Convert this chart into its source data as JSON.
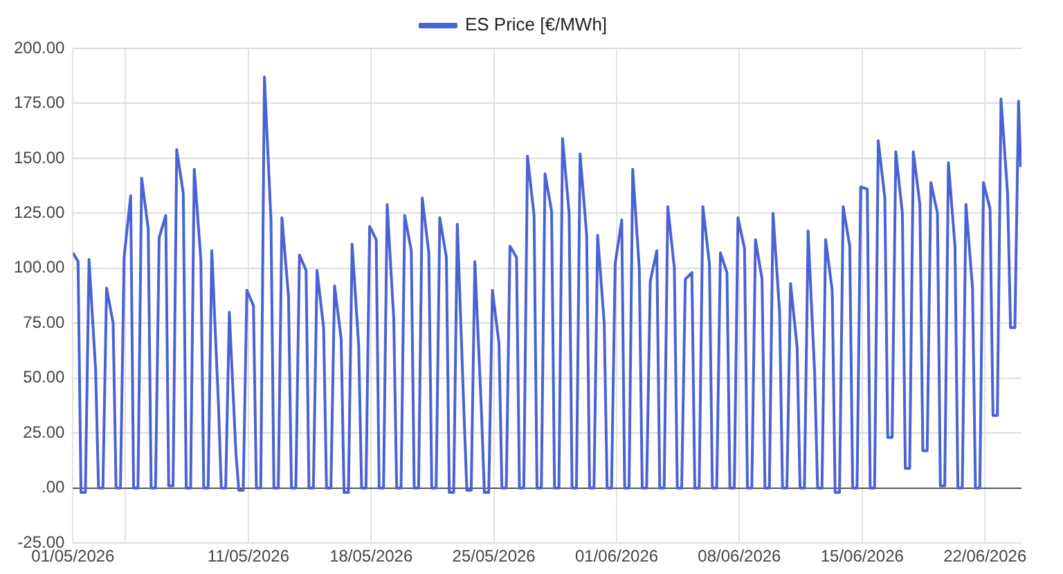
{
  "chart_data": {
    "type": "line",
    "legend": "top",
    "grid": true,
    "xlim": [
      "2026-05-01T00:00",
      "2026-06-24T02:00"
    ],
    "xticks": [
      {
        "value": "2026-05-01",
        "label": "01/05/2026"
      },
      {
        "value": "2026-05-04",
        "label": null
      },
      {
        "value": "2026-05-11",
        "label": "11/05/2026"
      },
      {
        "value": "2026-05-18",
        "label": "18/05/2026"
      },
      {
        "value": "2026-05-25",
        "label": "25/05/2026"
      },
      {
        "value": "2026-06-01",
        "label": "01/06/2026"
      },
      {
        "value": "2026-06-08",
        "label": "08/06/2026"
      },
      {
        "value": "2026-06-15",
        "label": "15/06/2026"
      },
      {
        "value": "2026-06-22",
        "label": "22/06/2026"
      }
    ],
    "ylim": [
      -25,
      200
    ],
    "yticks": [
      {
        "value": -25,
        "label": "-25.00"
      },
      {
        "value": 0,
        "label": ".00"
      },
      {
        "value": 25,
        "label": "25.00"
      },
      {
        "value": 50,
        "label": "50.00"
      },
      {
        "value": 75,
        "label": "75.00"
      },
      {
        "value": 100,
        "label": "100.00"
      },
      {
        "value": 125,
        "label": "125.00"
      },
      {
        "value": 150,
        "label": "150.00"
      },
      {
        "value": 175,
        "label": "175.00"
      },
      {
        "value": 200,
        "label": "200.00"
      }
    ],
    "series": [
      {
        "name": "ES Price [€/MWh]",
        "color": "#4a63d3",
        "x": [
          "2026-05-01T00:00",
          "2026-05-01T07:00",
          "2026-05-01T11:00",
          "2026-05-01T17:00",
          "2026-05-01T22:00",
          "2026-05-02T07:00",
          "2026-05-02T11:00",
          "2026-05-02T17:00",
          "2026-05-02T22:00",
          "2026-05-03T07:00",
          "2026-05-03T11:00",
          "2026-05-03T17:00",
          "2026-05-03T22:00",
          "2026-05-04T07:00",
          "2026-05-04T11:00",
          "2026-05-04T17:00",
          "2026-05-04T22:00",
          "2026-05-05T07:00",
          "2026-05-05T11:00",
          "2026-05-05T17:00",
          "2026-05-05T22:00",
          "2026-05-06T07:00",
          "2026-05-06T11:00",
          "2026-05-06T17:00",
          "2026-05-06T22:00",
          "2026-05-07T07:00",
          "2026-05-07T11:00",
          "2026-05-07T17:00",
          "2026-05-07T22:00",
          "2026-05-08T07:00",
          "2026-05-08T11:00",
          "2026-05-08T17:00",
          "2026-05-08T22:00",
          "2026-05-09T07:00",
          "2026-05-09T11:00",
          "2026-05-09T17:00",
          "2026-05-09T22:00",
          "2026-05-10T07:00",
          "2026-05-10T11:00",
          "2026-05-10T17:00",
          "2026-05-10T22:00",
          "2026-05-11T07:00",
          "2026-05-11T11:00",
          "2026-05-11T17:00",
          "2026-05-11T22:00",
          "2026-05-12T07:00",
          "2026-05-12T11:00",
          "2026-05-12T17:00",
          "2026-05-12T22:00",
          "2026-05-13T07:00",
          "2026-05-13T11:00",
          "2026-05-13T17:00",
          "2026-05-13T22:00",
          "2026-05-14T07:00",
          "2026-05-14T11:00",
          "2026-05-14T17:00",
          "2026-05-14T22:00",
          "2026-05-15T07:00",
          "2026-05-15T11:00",
          "2026-05-15T17:00",
          "2026-05-15T22:00",
          "2026-05-16T07:00",
          "2026-05-16T11:00",
          "2026-05-16T17:00",
          "2026-05-16T22:00",
          "2026-05-17T07:00",
          "2026-05-17T11:00",
          "2026-05-17T17:00",
          "2026-05-17T22:00",
          "2026-05-18T07:00",
          "2026-05-18T11:00",
          "2026-05-18T17:00",
          "2026-05-18T22:00",
          "2026-05-19T07:00",
          "2026-05-19T11:00",
          "2026-05-19T17:00",
          "2026-05-19T22:00",
          "2026-05-20T07:00",
          "2026-05-20T11:00",
          "2026-05-20T17:00",
          "2026-05-20T22:00",
          "2026-05-21T07:00",
          "2026-05-21T11:00",
          "2026-05-21T17:00",
          "2026-05-21T22:00",
          "2026-05-22T07:00",
          "2026-05-22T11:00",
          "2026-05-22T17:00",
          "2026-05-22T22:00",
          "2026-05-23T07:00",
          "2026-05-23T11:00",
          "2026-05-23T17:00",
          "2026-05-23T22:00",
          "2026-05-24T07:00",
          "2026-05-24T11:00",
          "2026-05-24T17:00",
          "2026-05-24T22:00",
          "2026-05-25T07:00",
          "2026-05-25T11:00",
          "2026-05-25T17:00",
          "2026-05-25T22:00",
          "2026-05-26T07:00",
          "2026-05-26T11:00",
          "2026-05-26T17:00",
          "2026-05-26T22:00",
          "2026-05-27T07:00",
          "2026-05-27T11:00",
          "2026-05-27T17:00",
          "2026-05-27T22:00",
          "2026-05-28T07:00",
          "2026-05-28T11:00",
          "2026-05-28T17:00",
          "2026-05-28T22:00",
          "2026-05-29T07:00",
          "2026-05-29T11:00",
          "2026-05-29T17:00",
          "2026-05-29T22:00",
          "2026-05-30T07:00",
          "2026-05-30T11:00",
          "2026-05-30T17:00",
          "2026-05-30T22:00",
          "2026-05-31T07:00",
          "2026-05-31T11:00",
          "2026-05-31T17:00",
          "2026-05-31T22:00",
          "2026-06-01T07:00",
          "2026-06-01T11:00",
          "2026-06-01T17:00",
          "2026-06-01T22:00",
          "2026-06-02T07:00",
          "2026-06-02T11:00",
          "2026-06-02T17:00",
          "2026-06-02T22:00",
          "2026-06-03T07:00",
          "2026-06-03T11:00",
          "2026-06-03T17:00",
          "2026-06-03T22:00",
          "2026-06-04T07:00",
          "2026-06-04T11:00",
          "2026-06-04T17:00",
          "2026-06-04T22:00",
          "2026-06-05T07:00",
          "2026-06-05T11:00",
          "2026-06-05T17:00",
          "2026-06-05T22:00",
          "2026-06-06T07:00",
          "2026-06-06T11:00",
          "2026-06-06T17:00",
          "2026-06-06T22:00",
          "2026-06-07T07:00",
          "2026-06-07T11:00",
          "2026-06-07T17:00",
          "2026-06-07T22:00",
          "2026-06-08T07:00",
          "2026-06-08T11:00",
          "2026-06-08T17:00",
          "2026-06-08T22:00",
          "2026-06-09T07:00",
          "2026-06-09T11:00",
          "2026-06-09T17:00",
          "2026-06-09T22:00",
          "2026-06-10T07:00",
          "2026-06-10T11:00",
          "2026-06-10T17:00",
          "2026-06-10T22:00",
          "2026-06-11T07:00",
          "2026-06-11T11:00",
          "2026-06-11T17:00",
          "2026-06-11T22:00",
          "2026-06-12T07:00",
          "2026-06-12T11:00",
          "2026-06-12T17:00",
          "2026-06-12T22:00",
          "2026-06-13T07:00",
          "2026-06-13T11:00",
          "2026-06-13T17:00",
          "2026-06-13T22:00",
          "2026-06-14T07:00",
          "2026-06-14T11:00",
          "2026-06-14T17:00",
          "2026-06-14T22:00",
          "2026-06-15T07:00",
          "2026-06-15T11:00",
          "2026-06-15T17:00",
          "2026-06-15T22:00",
          "2026-06-16T07:00",
          "2026-06-16T11:00",
          "2026-06-16T17:00",
          "2026-06-16T22:00",
          "2026-06-17T07:00",
          "2026-06-17T11:00",
          "2026-06-17T17:00",
          "2026-06-17T22:00",
          "2026-06-18T07:00",
          "2026-06-18T11:00",
          "2026-06-18T17:00",
          "2026-06-18T22:00",
          "2026-06-19T07:00",
          "2026-06-19T11:00",
          "2026-06-19T17:00",
          "2026-06-19T22:00",
          "2026-06-20T07:00",
          "2026-06-20T11:00",
          "2026-06-20T17:00",
          "2026-06-20T22:00",
          "2026-06-21T07:00",
          "2026-06-21T11:00",
          "2026-06-21T17:00",
          "2026-06-21T22:00",
          "2026-06-22T07:00",
          "2026-06-22T11:00",
          "2026-06-22T17:00",
          "2026-06-22T22:00",
          "2026-06-23T07:00",
          "2026-06-23T11:00",
          "2026-06-23T17:00",
          "2026-06-23T22:00",
          "2026-06-24T01:00"
        ],
        "values": [
          107,
          103,
          -2,
          -2,
          104,
          54,
          0,
          0,
          91,
          75,
          0,
          0,
          105,
          133,
          0,
          0,
          141,
          118,
          0,
          0,
          114,
          124,
          1,
          1,
          154,
          134,
          0,
          0,
          145,
          104,
          0,
          0,
          108,
          39,
          0,
          0,
          80,
          16,
          -1,
          -1,
          90,
          83,
          0,
          0,
          187,
          122,
          0,
          0,
          123,
          87,
          0,
          0,
          106,
          99,
          0,
          0,
          99,
          73,
          0,
          0,
          92,
          68,
          -2,
          -2,
          111,
          65,
          0,
          0,
          119,
          113,
          0,
          0,
          129,
          77,
          0,
          0,
          124,
          108,
          0,
          0,
          132,
          107,
          0,
          0,
          123,
          105,
          -2,
          -2,
          120,
          35,
          -1,
          -1,
          103,
          35,
          -2,
          -2,
          90,
          66,
          0,
          0,
          110,
          105,
          0,
          0,
          151,
          124,
          0,
          0,
          143,
          126,
          0,
          0,
          159,
          125,
          0,
          0,
          152,
          115,
          0,
          0,
          115,
          75,
          0,
          0,
          102,
          122,
          0,
          0,
          145,
          100,
          0,
          0,
          94,
          108,
          0,
          0,
          128,
          100,
          0,
          0,
          95,
          98,
          0,
          0,
          128,
          102,
          0,
          0,
          107,
          98,
          0,
          0,
          123,
          109,
          0,
          0,
          113,
          95,
          0,
          0,
          125,
          80,
          0,
          0,
          93,
          64,
          0,
          0,
          117,
          52,
          0,
          0,
          113,
          90,
          -2,
          -2,
          128,
          110,
          0,
          0,
          137,
          136,
          0,
          0,
          158,
          132,
          23,
          23,
          153,
          125,
          9,
          9,
          153,
          129,
          17,
          17,
          139,
          125,
          1,
          1,
          148,
          110,
          0,
          0,
          129,
          91,
          0,
          0,
          139,
          127,
          33,
          33,
          177,
          134,
          73,
          73,
          176,
          146
        ]
      }
    ]
  }
}
